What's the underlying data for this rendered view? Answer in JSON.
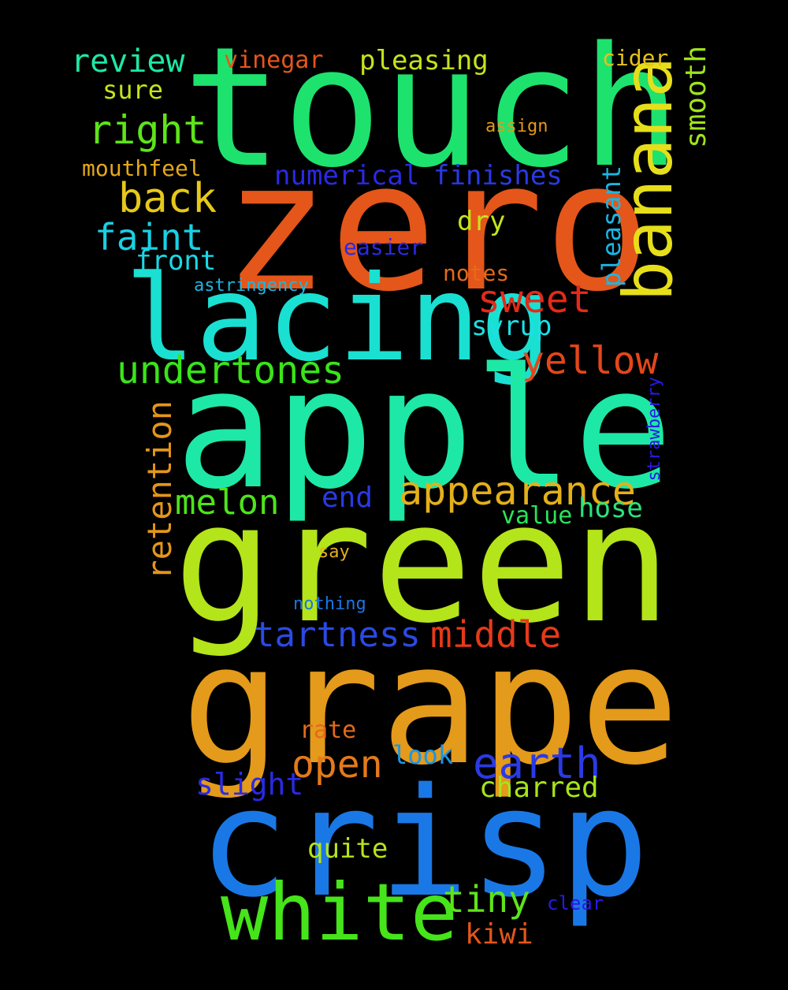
{
  "background": "#000000",
  "words": {
    "touch": {
      "text": "touch",
      "color": "#1ee26e"
    },
    "zero": {
      "text": "zero",
      "color": "#e4561a"
    },
    "banana": {
      "text": "banana",
      "color": "#e6de1a"
    },
    "lacing": {
      "text": "lacing",
      "color": "#1ae0d2"
    },
    "apple": {
      "text": "apple",
      "color": "#1ee8a6"
    },
    "green": {
      "text": "green",
      "color": "#b4e41a"
    },
    "grape": {
      "text": "grape",
      "color": "#e49a1a"
    },
    "crisp": {
      "text": "crisp",
      "color": "#1a78e6"
    },
    "white": {
      "text": "white",
      "color": "#46e41a"
    },
    "review": {
      "text": "review",
      "color": "#1ee8a6"
    },
    "sure": {
      "text": "sure",
      "color": "#c4e41a"
    },
    "vinegar": {
      "text": "vinegar",
      "color": "#e4561a"
    },
    "pleasing": {
      "text": "pleasing",
      "color": "#c4e41a"
    },
    "cider": {
      "text": "cider",
      "color": "#e6c21a"
    },
    "smooth": {
      "text": "smooth",
      "color": "#9ee41a"
    },
    "assign": {
      "text": "assign",
      "color": "#e49a1a"
    },
    "right": {
      "text": "right",
      "color": "#5ee41a"
    },
    "mouthfeel": {
      "text": "mouthfeel",
      "color": "#e4a81a"
    },
    "numerical": {
      "text": "numerical",
      "color": "#2a2ae4"
    },
    "finishes": {
      "text": "finishes",
      "color": "#2a3ae4"
    },
    "back": {
      "text": "back",
      "color": "#e6c81a"
    },
    "pleasant": {
      "text": "pleasant",
      "color": "#1ab6e4"
    },
    "dry": {
      "text": "dry",
      "color": "#c4e41a"
    },
    "faint": {
      "text": "faint",
      "color": "#1ad0e4"
    },
    "easier": {
      "text": "easier",
      "color": "#2a2ae4"
    },
    "front": {
      "text": "front",
      "color": "#1ad8e4"
    },
    "notes": {
      "text": "notes",
      "color": "#e46a1a"
    },
    "astringency": {
      "text": "astringency",
      "color": "#1ab8e4"
    },
    "sweet": {
      "text": "sweet",
      "color": "#e42a1a"
    },
    "syrup": {
      "text": "syrup",
      "color": "#1ae0e4"
    },
    "yellow": {
      "text": "yellow",
      "color": "#e4461a"
    },
    "undertones": {
      "text": "undertones",
      "color": "#3ae41a"
    },
    "strawberry": {
      "text": "strawberry",
      "color": "#2a1ae4"
    },
    "retention": {
      "text": "retention",
      "color": "#e4961a"
    },
    "appearance": {
      "text": "appearance",
      "color": "#e4b01a"
    },
    "melon": {
      "text": "melon",
      "color": "#4ee41a"
    },
    "end": {
      "text": "end",
      "color": "#2a3ae4"
    },
    "hose": {
      "text": "hose",
      "color": "#2ae47a"
    },
    "value": {
      "text": "value",
      "color": "#2ae45a"
    },
    "say": {
      "text": "say",
      "color": "#e4b01a"
    },
    "nothing": {
      "text": "nothing",
      "color": "#1a76e4"
    },
    "tartness": {
      "text": "tartness",
      "color": "#2a4ae4"
    },
    "middle": {
      "text": "middle",
      "color": "#e43a1a"
    },
    "rate": {
      "text": "rate",
      "color": "#e46a1a"
    },
    "look": {
      "text": "look",
      "color": "#1a96e4"
    },
    "open": {
      "text": "open",
      "color": "#e47a1a"
    },
    "earth": {
      "text": "earth",
      "color": "#2a3ae4"
    },
    "slight": {
      "text": "slight",
      "color": "#2a2ae4"
    },
    "charred": {
      "text": "charred",
      "color": "#a6e41a"
    },
    "quite": {
      "text": "quite",
      "color": "#b6e41a"
    },
    "tiny": {
      "text": "tiny",
      "color": "#5ee41a"
    },
    "clear": {
      "text": "clear",
      "color": "#2a1ae4"
    },
    "kiwi": {
      "text": "kiwi",
      "color": "#e4561a"
    }
  }
}
